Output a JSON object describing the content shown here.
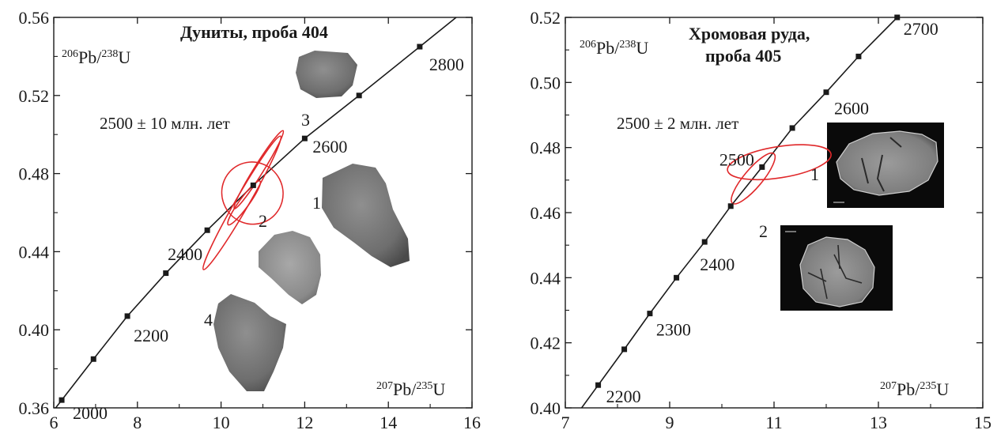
{
  "chart_data": [
    {
      "type": "scatter",
      "subtype": "concordia",
      "title": "Дуниты, проба 404",
      "ylabel_sup": "206",
      "ylabel_main": "Pb/",
      "ylabel_sup2": "238",
      "ylabel_end": "U",
      "xlabel_sup": "207",
      "xlabel_main": "Pb/",
      "xlabel_sup2": "235",
      "xlabel_end": "U",
      "age_text": "2500 ± 10 млн. лет",
      "xlim": [
        6,
        16
      ],
      "ylim": [
        0.36,
        0.56
      ],
      "xticks": [
        6,
        8,
        10,
        12,
        14,
        16
      ],
      "xtick_labels": [
        "6",
        "8",
        "10",
        "12",
        "14",
        "16"
      ],
      "yticks": [
        0.36,
        0.4,
        0.44,
        0.48,
        0.52,
        0.56
      ],
      "ytick_labels": [
        "0.36",
        "0.40",
        "0.44",
        "0.48",
        "0.52",
        "0.56"
      ],
      "concordia_points": [
        {
          "age": 2000,
          "x": 6.19,
          "y": 0.364,
          "label": "2000"
        },
        {
          "age": 2100,
          "x": 6.95,
          "y": 0.385,
          "label": ""
        },
        {
          "age": 2200,
          "x": 7.76,
          "y": 0.407,
          "label": "2200"
        },
        {
          "age": 2300,
          "x": 8.68,
          "y": 0.429,
          "label": ""
        },
        {
          "age": 2400,
          "x": 9.67,
          "y": 0.451,
          "label": "2400"
        },
        {
          "age": 2500,
          "x": 10.77,
          "y": 0.474,
          "label": ""
        },
        {
          "age": 2600,
          "x": 12.0,
          "y": 0.498,
          "label": "2600"
        },
        {
          "age": 2700,
          "x": 13.3,
          "y": 0.52,
          "label": ""
        },
        {
          "age": 2800,
          "x": 14.75,
          "y": 0.545,
          "label": "2800"
        }
      ],
      "ellipses": [
        {
          "label": "1",
          "cx": 10.75,
          "cy": 0.47,
          "rx": 2.65,
          "ry": 0.016,
          "angle": -27
        },
        {
          "label": "2",
          "cx": 10.55,
          "cy": 0.465,
          "rx": 2.35,
          "ry": 0.0025,
          "angle": -54
        },
        {
          "label": "3",
          "cx": 10.9,
          "cy": 0.482,
          "rx": 4.0,
          "ry": 0.0024,
          "angle": -58
        },
        {
          "label": "4",
          "cx": 10.5,
          "cy": 0.465,
          "rx": 6.7,
          "ry": 0.0034,
          "angle": -60
        }
      ],
      "colors": {
        "ellipse": "#e0282a",
        "curve": "#1a1a1a"
      }
    },
    {
      "type": "scatter",
      "subtype": "concordia",
      "title_line1": "Хромовая руда,",
      "title_line2": "проба 405",
      "ylabel_sup": "206",
      "ylabel_main": "Pb/",
      "ylabel_sup2": "238",
      "ylabel_end": "U",
      "xlabel_sup": "207",
      "xlabel_main": "Pb/",
      "xlabel_sup2": "235",
      "xlabel_end": "U",
      "age_text": "2500 ± 2 млн. лет",
      "xlim": [
        7,
        15
      ],
      "ylim": [
        0.4,
        0.52
      ],
      "xticks": [
        7,
        9,
        11,
        13,
        15
      ],
      "xtick_labels": [
        "7",
        "9",
        "11",
        "13",
        "15"
      ],
      "yticks": [
        0.4,
        0.42,
        0.44,
        0.46,
        0.48,
        0.5,
        0.52
      ],
      "ytick_labels": [
        "0.40",
        "0.42",
        "0.44",
        "0.46",
        "0.48",
        "0.50",
        "0.52"
      ],
      "concordia_points": [
        {
          "age": 2200,
          "x": 7.63,
          "y": 0.407,
          "label": "2200"
        },
        {
          "age": 2250,
          "x": 8.13,
          "y": 0.418,
          "label": ""
        },
        {
          "age": 2300,
          "x": 8.62,
          "y": 0.429,
          "label": "2300"
        },
        {
          "age": 2350,
          "x": 9.13,
          "y": 0.44,
          "label": ""
        },
        {
          "age": 2400,
          "x": 9.67,
          "y": 0.451,
          "label": "2400"
        },
        {
          "age": 2450,
          "x": 10.17,
          "y": 0.462,
          "label": ""
        },
        {
          "age": 2500,
          "x": 10.77,
          "y": 0.474,
          "label": "2500"
        },
        {
          "age": 2550,
          "x": 11.35,
          "y": 0.486,
          "label": ""
        },
        {
          "age": 2600,
          "x": 12.0,
          "y": 0.497,
          "label": "2600"
        },
        {
          "age": 2650,
          "x": 12.62,
          "y": 0.508,
          "label": ""
        },
        {
          "age": 2700,
          "x": 13.36,
          "y": 0.52,
          "label": "2700"
        }
      ],
      "ellipses": [
        {
          "label": "1",
          "cx": 11.1,
          "cy": 0.4755,
          "rx": 3.65,
          "ry": 0.0048,
          "angle": -9
        },
        {
          "label": "2",
          "cx": 10.6,
          "cy": 0.4705,
          "rx": 2.25,
          "ry": 0.0028,
          "angle": -50
        }
      ],
      "colors": {
        "ellipse": "#e0282a",
        "curve": "#1a1a1a"
      }
    }
  ]
}
